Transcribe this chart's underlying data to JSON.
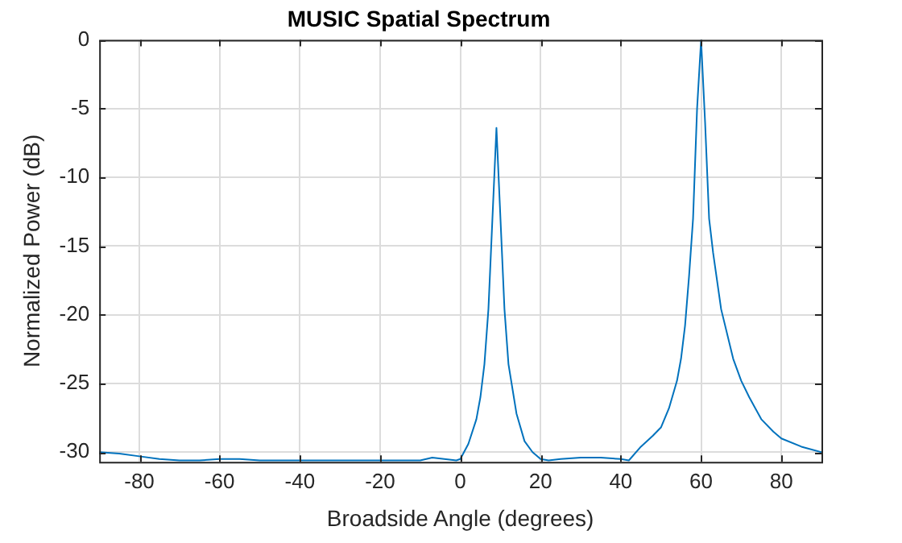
{
  "chart_data": {
    "type": "line",
    "title": "MUSIC Spatial Spectrum",
    "xlabel": "Broadside Angle (degrees)",
    "ylabel": "Normalized Power (dB)",
    "x": [
      -90,
      -85,
      -80,
      -75,
      -70,
      -65,
      -60,
      -55,
      -50,
      -40,
      -30,
      -20,
      -10,
      -7,
      -4,
      -1,
      0,
      2,
      4,
      5,
      6,
      7,
      8,
      9,
      10,
      11,
      12,
      14,
      16,
      18,
      20,
      22,
      25,
      30,
      35,
      40,
      42,
      45,
      48,
      50,
      52,
      54,
      55,
      56,
      57,
      58,
      59,
      60,
      61,
      62,
      63,
      65,
      68,
      70,
      72,
      75,
      78,
      80,
      85,
      90
    ],
    "series": [
      {
        "color": "#0072bd",
        "values": [
          -30,
          -30.1,
          -30.3,
          -30.5,
          -30.6,
          -30.6,
          -30.5,
          -30.5,
          -30.6,
          -30.6,
          -30.6,
          -30.6,
          -30.6,
          -30.4,
          -30.5,
          -30.6,
          -30.5,
          -29.4,
          -27.6,
          -26,
          -23.6,
          -19.6,
          -13,
          -6.4,
          -13,
          -19.6,
          -23.6,
          -27.2,
          -29.2,
          -30,
          -30.5,
          -30.6,
          -30.5,
          -30.4,
          -30.4,
          -30.5,
          -30.6,
          -29.6,
          -28.8,
          -28.2,
          -26.8,
          -24.8,
          -23.2,
          -20.8,
          -17.2,
          -13,
          -5,
          0,
          -6,
          -13,
          -15.5,
          -19.6,
          -23.2,
          -24.8,
          -26,
          -27.6,
          -28.5,
          -29,
          -29.6,
          -30
        ]
      }
    ],
    "xlim": [
      -90,
      90
    ],
    "xticks": [
      -80,
      -60,
      -40,
      -20,
      0,
      20,
      40,
      60,
      80
    ],
    "ylim": [
      -30.7,
      0
    ],
    "yticks": [
      -30,
      -25,
      -20,
      -15,
      -10,
      -5,
      0
    ],
    "grid": true,
    "legend": false,
    "marker": "none",
    "line_style": "solid"
  }
}
